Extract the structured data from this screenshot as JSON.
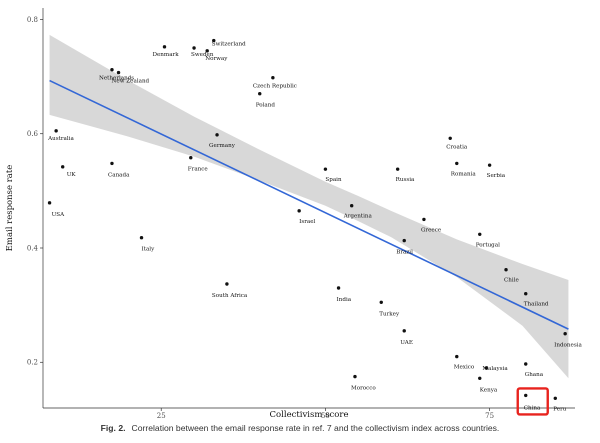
{
  "chart_data": {
    "type": "scatter",
    "xlabel": "Collectivism score",
    "ylabel": "Email response rate",
    "xlim": [
      7,
      88
    ],
    "ylim": [
      0.12,
      0.82
    ],
    "x_ticks": [
      25,
      50,
      75
    ],
    "y_ticks": [
      0.2,
      0.4,
      0.6,
      0.8
    ],
    "tick_labels_x": [
      "25",
      "50",
      "75"
    ],
    "tick_labels_y": [
      "0.2",
      "0.4",
      "0.6",
      "0.8"
    ],
    "grid": false,
    "points": [
      {
        "label": "Denmark",
        "x": 25.5,
        "y": 0.752
      },
      {
        "label": "Switzerland",
        "x": 33,
        "y": 0.763
      },
      {
        "label": "Sweden",
        "x": 30,
        "y": 0.75
      },
      {
        "label": "Norway",
        "x": 32,
        "y": 0.745
      },
      {
        "label": "Netherlands",
        "x": 17.5,
        "y": 0.712
      },
      {
        "label": "New Zealand",
        "x": 18.5,
        "y": 0.707
      },
      {
        "label": "Czech Republic",
        "x": 42,
        "y": 0.698
      },
      {
        "label": "Poland",
        "x": 40,
        "y": 0.67
      },
      {
        "label": "Australia",
        "x": 9,
        "y": 0.605
      },
      {
        "label": "Germany",
        "x": 33.5,
        "y": 0.598
      },
      {
        "label": "Croatia",
        "x": 69,
        "y": 0.592
      },
      {
        "label": "UK",
        "x": 10,
        "y": 0.542
      },
      {
        "label": "Canada",
        "x": 17.5,
        "y": 0.548
      },
      {
        "label": "France",
        "x": 29.5,
        "y": 0.558
      },
      {
        "label": "Spain",
        "x": 50,
        "y": 0.538
      },
      {
        "label": "Russia",
        "x": 61,
        "y": 0.538
      },
      {
        "label": "Romania",
        "x": 70,
        "y": 0.548
      },
      {
        "label": "Serbia",
        "x": 75,
        "y": 0.545
      },
      {
        "label": "USA",
        "x": 8,
        "y": 0.479
      },
      {
        "label": "Argentina",
        "x": 54,
        "y": 0.474
      },
      {
        "label": "Israel",
        "x": 46,
        "y": 0.465
      },
      {
        "label": "Greece",
        "x": 65,
        "y": 0.45
      },
      {
        "label": "Portugal",
        "x": 73.5,
        "y": 0.424
      },
      {
        "label": "Italy",
        "x": 22,
        "y": 0.418
      },
      {
        "label": "Brazil",
        "x": 62,
        "y": 0.413
      },
      {
        "label": "Chile",
        "x": 77.5,
        "y": 0.362
      },
      {
        "label": "South Africa",
        "x": 35,
        "y": 0.337
      },
      {
        "label": "India",
        "x": 52,
        "y": 0.33
      },
      {
        "label": "Thailand",
        "x": 80.5,
        "y": 0.32
      },
      {
        "label": "Turkey",
        "x": 58.5,
        "y": 0.305
      },
      {
        "label": "UAE",
        "x": 62,
        "y": 0.255
      },
      {
        "label": "Indonesia",
        "x": 86.5,
        "y": 0.25
      },
      {
        "label": "Mexico",
        "x": 70,
        "y": 0.21
      },
      {
        "label": "Ghana",
        "x": 80.5,
        "y": 0.197
      },
      {
        "label": "Malaysia",
        "x": 74.5,
        "y": 0.19
      },
      {
        "label": "Kenya",
        "x": 73.5,
        "y": 0.172
      },
      {
        "label": "Morocco",
        "x": 54.5,
        "y": 0.175
      },
      {
        "label": "China",
        "x": 80.5,
        "y": 0.142
      },
      {
        "label": "Peru",
        "x": 85,
        "y": 0.137
      }
    ],
    "trend": {
      "x": [
        8,
        87
      ],
      "y": [
        0.693,
        0.258
      ]
    },
    "confidence_band": {
      "x": [
        8,
        20,
        30,
        40,
        50,
        55,
        60,
        70,
        80,
        87
      ],
      "lower": [
        0.633,
        0.595,
        0.56,
        0.518,
        0.474,
        0.447,
        0.419,
        0.349,
        0.264,
        0.172
      ],
      "upper": [
        0.773,
        0.693,
        0.63,
        0.572,
        0.516,
        0.491,
        0.465,
        0.415,
        0.372,
        0.344
      ]
    },
    "highlight": {
      "label": "China",
      "color": "#e8231e"
    },
    "colors": {
      "points": "#111111",
      "trend": "#3367d6",
      "band": "#d4d4d4",
      "axis": "#333333"
    }
  },
  "caption": {
    "label": "Fig. 2.",
    "text": "Correlation between the email response rate in ref. 7 and the collectivism index across countries."
  }
}
